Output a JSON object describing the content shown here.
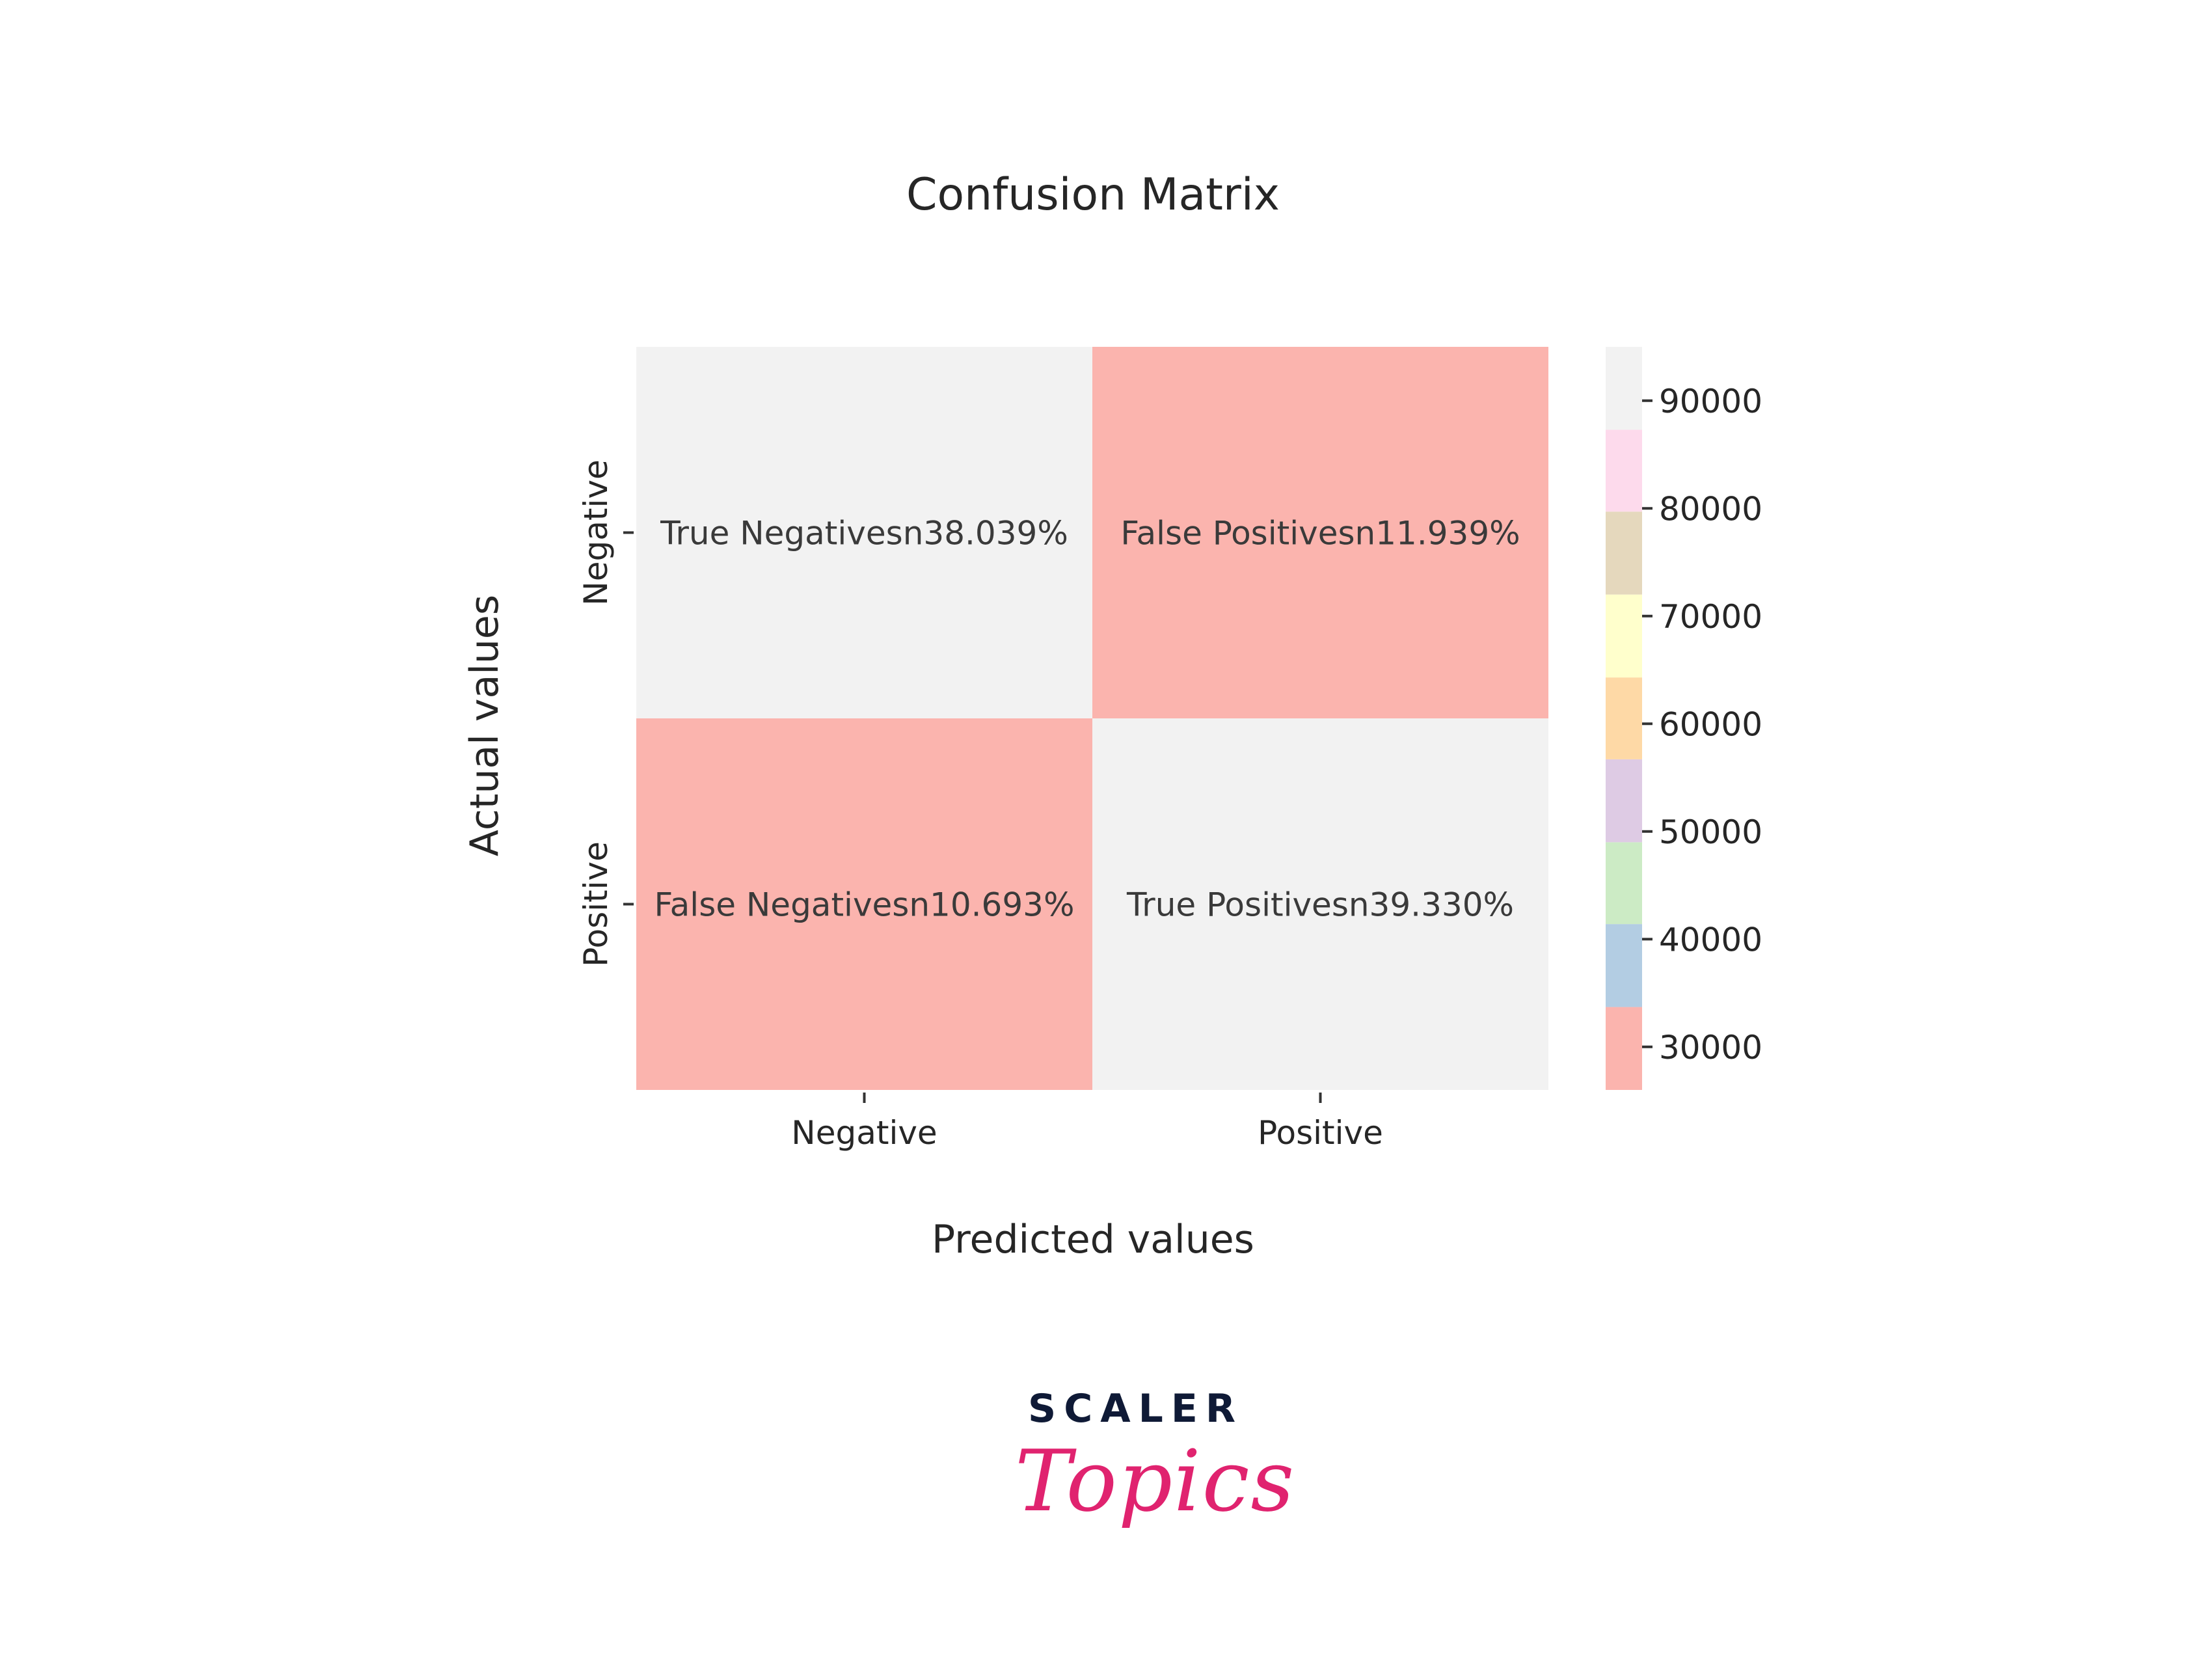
{
  "chart_data": {
    "type": "heatmap",
    "title": "Confusion Matrix",
    "xlabel": "Predicted values",
    "ylabel": "Actual values",
    "x_categories": [
      "Negative",
      "Positive"
    ],
    "y_categories": [
      "Negative",
      "Positive"
    ],
    "cells": [
      {
        "row": 0,
        "col": 0,
        "label": "True Negativesn38.039%",
        "value": 95000
      },
      {
        "row": 0,
        "col": 1,
        "label": "False Positivesn11.939%",
        "value": 29800
      },
      {
        "row": 1,
        "col": 0,
        "label": "False Negativesn10.693%",
        "value": 26700
      },
      {
        "row": 1,
        "col": 1,
        "label": "True Positivesn39.330%",
        "value": 98200
      }
    ],
    "colorbar": {
      "range": [
        26000,
        95000
      ],
      "ticks": [
        30000,
        40000,
        50000,
        60000,
        70000,
        80000,
        90000
      ],
      "tick_labels": [
        "30000",
        "40000",
        "50000",
        "60000",
        "70000",
        "80000",
        "90000"
      ],
      "colormap": "Pastel1",
      "bins": [
        {
          "from": 26000,
          "to": 33700,
          "color": "#fbb4ae"
        },
        {
          "from": 33700,
          "to": 41400,
          "color": "#b3cde3"
        },
        {
          "from": 41400,
          "to": 49000,
          "color": "#ccebc5"
        },
        {
          "from": 49000,
          "to": 56700,
          "color": "#decbe4"
        },
        {
          "from": 56700,
          "to": 64300,
          "color": "#fed9a6"
        },
        {
          "from": 64300,
          "to": 72000,
          "color": "#ffffcc"
        },
        {
          "from": 72000,
          "to": 79700,
          "color": "#e5d8bd"
        },
        {
          "from": 79700,
          "to": 87300,
          "color": "#fddaec"
        },
        {
          "from": 87300,
          "to": 95000,
          "color": "#f2f2f2"
        }
      ]
    }
  },
  "brand": {
    "name": "SCALER",
    "sub": "Topics"
  },
  "colors": {
    "text": "#262626",
    "brand_dark": "#0f1a36",
    "brand_pink": "#e0236f"
  }
}
